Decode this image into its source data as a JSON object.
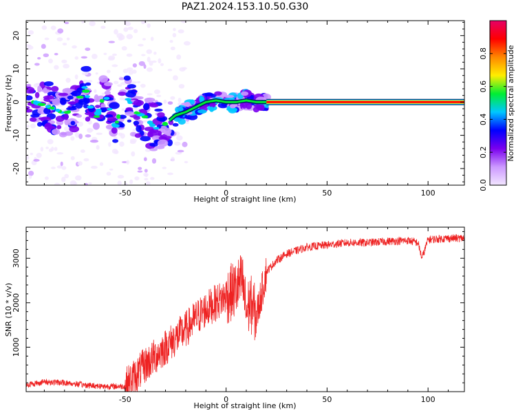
{
  "title": "PAZ1.2024.153.10.50.G30",
  "colors": {
    "snr_line": "#ee2222",
    "axis": "#000000",
    "colormap": [
      "#f2e6ff",
      "#cc99ff",
      "#7a00ee",
      "#0000ff",
      "#00c8ff",
      "#00ee33",
      "#ffee00",
      "#ff8800",
      "#ff0000",
      "#e60066"
    ]
  },
  "chart_data": [
    {
      "type": "heatmap",
      "xlabel": "Height of straight line (km)",
      "ylabel": "Frequency (Hz)",
      "xlim": [
        -99,
        118
      ],
      "ylim": [
        -25,
        24.5
      ],
      "xticks": [
        -50,
        0,
        50,
        100
      ],
      "yticks": [
        -20,
        -10,
        0,
        10,
        20
      ],
      "grid": false,
      "colorbar": {
        "label": "Normalized spectral amplitude",
        "ticks": [
          "0.0",
          "0.2",
          "0.4",
          "0.6",
          "0.8"
        ],
        "tick_values": [
          0.0,
          0.2,
          0.4,
          0.6,
          0.8
        ],
        "range": [
          0,
          1
        ]
      },
      "description_of_pattern": [
        {
          "x": -95,
          "y": 0.0
        },
        {
          "x": -90,
          "y": -1.0
        },
        {
          "x": -85,
          "y": -2.0
        },
        {
          "x": -80,
          "y": -3.5
        },
        {
          "x": -75,
          "y": -2.0
        },
        {
          "x": -70,
          "y": 4.5
        },
        {
          "x": -65,
          "y": -6.0
        },
        {
          "x": -60,
          "y": 3.0
        },
        {
          "x": -55,
          "y": -8.0
        },
        {
          "x": -50,
          "y": 2.5
        },
        {
          "x": -45,
          "y": -3.0
        },
        {
          "x": -40,
          "y": -4.5
        },
        {
          "x": -35,
          "y": -8.0
        },
        {
          "x": -30,
          "y": -6.5
        },
        {
          "x": -25,
          "y": -4.0
        },
        {
          "x": -20,
          "y": -3.0
        },
        {
          "x": -15,
          "y": -1.5
        },
        {
          "x": -10,
          "y": 0.0
        },
        {
          "x": -5,
          "y": 0.5
        },
        {
          "x": 0,
          "y": 0.0
        },
        {
          "x": 5,
          "y": 0.0
        },
        {
          "x": 10,
          "y": 0.5
        },
        {
          "x": 15,
          "y": 0.0
        },
        {
          "x": 20,
          "y": 0.0
        },
        {
          "x": 50,
          "y": 0.0
        },
        {
          "x": 80,
          "y": 0.0
        },
        {
          "x": 118,
          "y": 0.0
        }
      ]
    },
    {
      "type": "line",
      "xlabel": "Height of straight line (km)",
      "ylabel": "SNR (10 * v/v)",
      "xlim": [
        -99,
        118
      ],
      "ylim": [
        0,
        3700
      ],
      "xticks": [
        -50,
        0,
        50,
        100
      ],
      "yticks": [
        1000,
        2000,
        3000
      ],
      "grid": false,
      "series": [
        {
          "x": [
            -99,
            -90,
            -80,
            -70,
            -60,
            -50,
            -45,
            -40,
            -35,
            -30,
            -25,
            -20,
            -15,
            -10,
            -5,
            0,
            5,
            8,
            10,
            12,
            15,
            18,
            20,
            25,
            30,
            40,
            50,
            60,
            70,
            80,
            90,
            95,
            97,
            100,
            110,
            118
          ],
          "y": [
            150,
            220,
            200,
            150,
            120,
            120,
            350,
            600,
            800,
            1000,
            1200,
            1400,
            1650,
            1850,
            2000,
            2150,
            2300,
            2500,
            1800,
            2000,
            1700,
            2300,
            2700,
            2950,
            3100,
            3250,
            3300,
            3350,
            3350,
            3380,
            3400,
            3350,
            3000,
            3420,
            3450,
            3450
          ]
        }
      ]
    }
  ]
}
